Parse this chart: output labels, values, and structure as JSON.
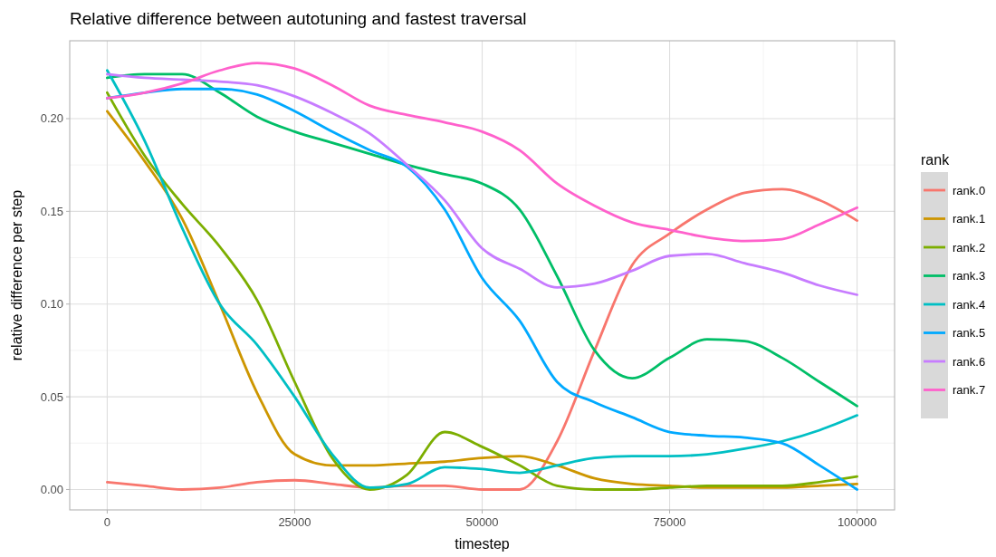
{
  "chart_data": {
    "type": "line",
    "title": "Relative difference between autotuning and fastest traversal",
    "xlabel": "timestep",
    "ylabel": "relative difference per step",
    "legend_title": "rank",
    "legend": "right",
    "grid": true,
    "marker": "none",
    "line_style": "solid",
    "x": [
      0,
      5000,
      10000,
      15000,
      20000,
      25000,
      30000,
      35000,
      40000,
      45000,
      50000,
      55000,
      60000,
      65000,
      70000,
      75000,
      80000,
      85000,
      90000,
      95000,
      100000
    ],
    "xlim": [
      -5000,
      105000
    ],
    "xticks": [
      0,
      25000,
      50000,
      75000,
      100000
    ],
    "ylim": [
      -0.011,
      0.242
    ],
    "yticks": [
      {
        "value": 0,
        "label": "0.00"
      },
      {
        "value": 0.05,
        "label": "0.05"
      },
      {
        "value": 0.1,
        "label": "0.10"
      },
      {
        "value": 0.15,
        "label": "0.15"
      },
      {
        "value": 0.2,
        "label": "0.20"
      }
    ],
    "series": [
      {
        "name": "rank.0",
        "color": "#f8766d",
        "values": [
          0.004,
          0.002,
          0.0,
          0.001,
          0.004,
          0.005,
          0.003,
          0.001,
          0.002,
          0.002,
          0.0,
          0.0,
          0.026,
          0.075,
          0.121,
          0.138,
          0.151,
          0.16,
          0.162,
          0.156,
          0.145
        ]
      },
      {
        "name": "rank.1",
        "color": "#cd9600",
        "values": [
          0.204,
          0.177,
          0.146,
          0.1,
          0.052,
          0.019,
          0.013,
          0.013,
          0.014,
          0.015,
          0.017,
          0.018,
          0.013,
          0.006,
          0.003,
          0.002,
          0.001,
          0.001,
          0.001,
          0.002,
          0.003
        ]
      },
      {
        "name": "rank.2",
        "color": "#7cae00",
        "values": [
          0.214,
          0.18,
          0.154,
          0.131,
          0.102,
          0.058,
          0.017,
          0.0,
          0.008,
          0.031,
          0.023,
          0.013,
          0.002,
          0.0,
          0.0,
          0.001,
          0.002,
          0.002,
          0.002,
          0.004,
          0.007
        ]
      },
      {
        "name": "rank.3",
        "color": "#00be67",
        "values": [
          0.222,
          0.224,
          0.224,
          0.214,
          0.201,
          0.193,
          0.187,
          0.181,
          0.175,
          0.17,
          0.165,
          0.151,
          0.115,
          0.075,
          0.06,
          0.071,
          0.081,
          0.08,
          0.071,
          0.058,
          0.045
        ]
      },
      {
        "name": "rank.4",
        "color": "#00bfc4",
        "values": [
          0.226,
          0.188,
          0.141,
          0.1,
          0.078,
          0.05,
          0.019,
          0.001,
          0.003,
          0.012,
          0.011,
          0.009,
          0.013,
          0.017,
          0.018,
          0.018,
          0.019,
          0.022,
          0.026,
          0.032,
          0.04
        ]
      },
      {
        "name": "rank.5",
        "color": "#00a9ff",
        "values": [
          0.211,
          0.214,
          0.216,
          0.216,
          0.213,
          0.204,
          0.193,
          0.183,
          0.174,
          0.151,
          0.114,
          0.091,
          0.058,
          0.047,
          0.039,
          0.031,
          0.029,
          0.028,
          0.025,
          0.013,
          0.0
        ]
      },
      {
        "name": "rank.6",
        "color": "#c77cff",
        "values": [
          0.224,
          0.222,
          0.221,
          0.22,
          0.218,
          0.212,
          0.203,
          0.192,
          0.175,
          0.156,
          0.13,
          0.119,
          0.109,
          0.111,
          0.118,
          0.126,
          0.127,
          0.122,
          0.117,
          0.11,
          0.105
        ]
      },
      {
        "name": "rank.7",
        "color": "#ff61cc",
        "values": [
          0.211,
          0.214,
          0.219,
          0.226,
          0.23,
          0.227,
          0.218,
          0.207,
          0.202,
          0.198,
          0.193,
          0.183,
          0.165,
          0.153,
          0.144,
          0.14,
          0.136,
          0.134,
          0.135,
          0.143,
          0.152
        ]
      }
    ]
  }
}
